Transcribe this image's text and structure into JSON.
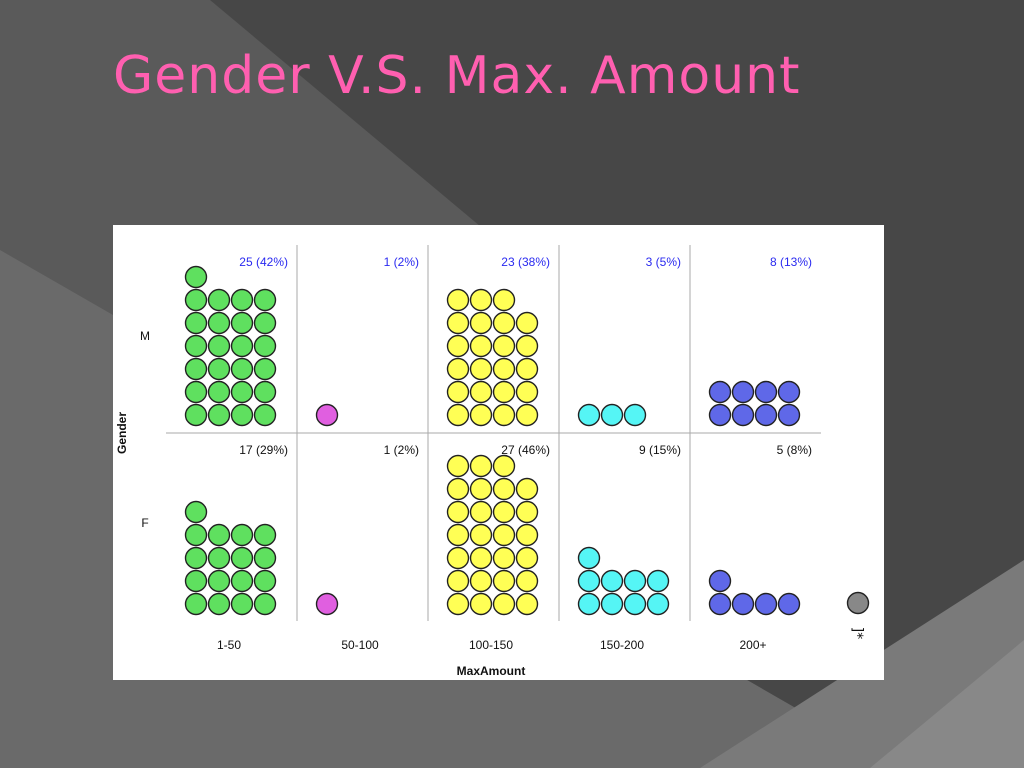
{
  "slide": {
    "title": "Gender V.S. Max. Amount"
  },
  "chart_data": {
    "type": "dot",
    "xlabel": "MaxAmount",
    "ylabel": "Gender",
    "categories": [
      "1-50",
      "50-100",
      "100-150",
      "150-200",
      "200+"
    ],
    "rows": [
      "M",
      "F"
    ],
    "category_colors": [
      "#5fe05f",
      "#e05fe0",
      "#ffff55",
      "#55f5f5",
      "#5f68e8"
    ],
    "cells": [
      [
        {
          "count": 25,
          "label": "25 (42%)"
        },
        {
          "count": 1,
          "label": "1 (2%)"
        },
        {
          "count": 23,
          "label": "23 (38%)"
        },
        {
          "count": 3,
          "label": "3 (5%)"
        },
        {
          "count": 8,
          "label": "8 (13%)"
        }
      ],
      [
        {
          "count": 17,
          "label": "17 (29%)"
        },
        {
          "count": 1,
          "label": "1 (2%)"
        },
        {
          "count": 27,
          "label": "27 (46%)"
        },
        {
          "count": 9,
          "label": "9 (15%)"
        },
        {
          "count": 5,
          "label": "5 (8%)"
        }
      ]
    ],
    "label_colors": [
      "#2a2af0",
      "#111111"
    ],
    "legend": {
      "placement": "right",
      "color": "#888888",
      "text": "]*"
    }
  }
}
